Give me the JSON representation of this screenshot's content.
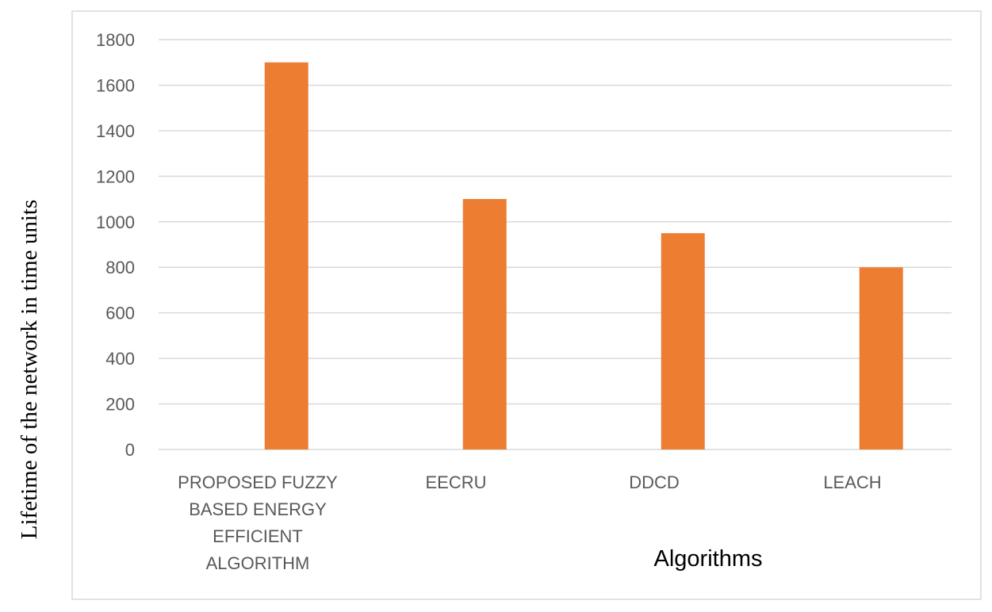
{
  "chart_data": {
    "type": "bar",
    "categories": [
      [
        "PROPOSED FUZZY",
        "BASED ENERGY",
        "EFFICIENT",
        "ALGORITHM"
      ],
      [
        "EECRU"
      ],
      [
        "DDCD"
      ],
      [
        "LEACH"
      ]
    ],
    "values": [
      1700,
      1100,
      950,
      800
    ],
    "xlabel": "Algorithms",
    "ylabel": "Lifetime of the network in time units",
    "ylim": [
      0,
      1800
    ],
    "yticks": [
      0,
      200,
      400,
      600,
      800,
      1000,
      1200,
      1400,
      1600,
      1800
    ],
    "bar_color": "#ED7D31",
    "grid": true,
    "legend": "none"
  }
}
